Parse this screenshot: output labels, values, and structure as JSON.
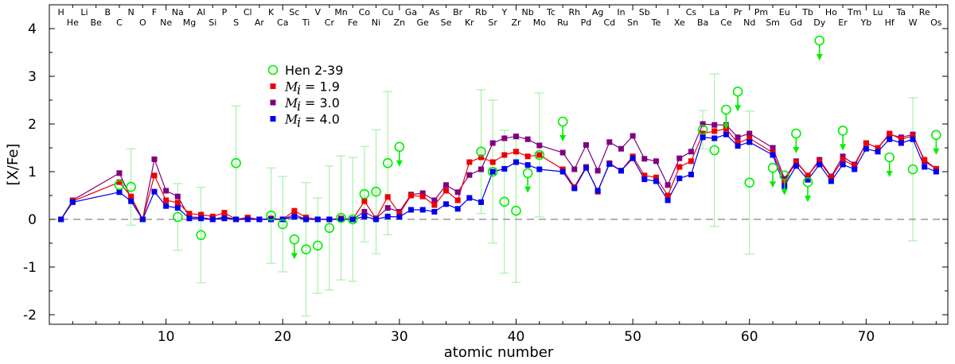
{
  "chart_data": {
    "type": "line",
    "title": "",
    "xlabel": "atomic number",
    "ylabel": "[X/Fe]",
    "xlim": [
      0,
      77
    ],
    "ylim": [
      -2.2,
      4.5
    ],
    "xticks": [
      10,
      20,
      30,
      40,
      50,
      60,
      70
    ],
    "yticks": [
      -2,
      -1,
      0,
      1,
      2,
      3,
      4
    ],
    "zero_line": "dashed",
    "legend_position": "upper-left",
    "colors": {
      "hen": "#00ee00",
      "hen_err": "#99ee99",
      "m19": "#ee0000",
      "m30": "#800080",
      "m40": "#0000ee",
      "zero": "#666666",
      "axis": "#000000"
    },
    "elements_top": [
      "H",
      "Li",
      "B",
      "N",
      "F",
      "Na",
      "Al",
      "P",
      "Cl",
      "K",
      "Sc",
      "V",
      "Mn",
      "Co",
      "Cu",
      "Ga",
      "As",
      "Br",
      "Rb",
      "Y",
      "Nb",
      "Tc",
      "Rh",
      "Ag",
      "In",
      "Sb",
      "I",
      "Cs",
      "La",
      "Pr",
      "Pm",
      "Eu",
      "Tb",
      "Ho",
      "Tm",
      "Lu",
      "Ta",
      "Re"
    ],
    "elements_bottom": [
      "He",
      "Be",
      "C",
      "O",
      "Ne",
      "Mg",
      "Si",
      "S",
      "Ar",
      "Ca",
      "Ti",
      "Cr",
      "Fe",
      "Ni",
      "Zn",
      "Ge",
      "Se",
      "Kr",
      "Sr",
      "Zr",
      "Mo",
      "Ru",
      "Pd",
      "Cd",
      "Sn",
      "Te",
      "Xe",
      "Ba",
      "Ce",
      "Nd",
      "Sm",
      "Gd",
      "Dy",
      "Er",
      "Yb",
      "Hf",
      "W",
      "Os"
    ],
    "legend": {
      "observed": "Hen 2-39",
      "models": [
        {
          "key": "m19",
          "label": "= 1.9"
        },
        {
          "key": "m30",
          "label": "= 3.0"
        },
        {
          "key": "m40",
          "label": "= 4.0"
        }
      ],
      "model_symbol": "M",
      "model_subscript": "i"
    },
    "observations": [
      {
        "z": 6,
        "y": 0.72,
        "err": null,
        "upper": false
      },
      {
        "z": 7,
        "y": 0.68,
        "err": 0.8,
        "upper": false
      },
      {
        "z": 11,
        "y": 0.05,
        "err": 0.7,
        "upper": false
      },
      {
        "z": 13,
        "y": -0.33,
        "err": 1.0,
        "upper": false
      },
      {
        "z": 16,
        "y": 1.18,
        "err": 1.2,
        "upper": false
      },
      {
        "z": 19,
        "y": 0.08,
        "err": 1.0,
        "upper": false
      },
      {
        "z": 20,
        "y": -0.1,
        "err": 1.0,
        "upper": false
      },
      {
        "z": 21,
        "y": -0.42,
        "err": null,
        "upper": true
      },
      {
        "z": 22,
        "y": -0.63,
        "err": 1.4,
        "upper": false
      },
      {
        "z": 23,
        "y": -0.55,
        "err": 1.0,
        "upper": false
      },
      {
        "z": 24,
        "y": -0.18,
        "err": 1.3,
        "upper": false
      },
      {
        "z": 25,
        "y": 0.03,
        "err": 1.3,
        "upper": false
      },
      {
        "z": 26,
        "y": 0.0,
        "err": 1.3,
        "upper": false
      },
      {
        "z": 27,
        "y": 0.53,
        "err": 1.0,
        "upper": false
      },
      {
        "z": 28,
        "y": 0.58,
        "err": 1.3,
        "upper": false
      },
      {
        "z": 29,
        "y": 1.18,
        "err": 1.5,
        "upper": false
      },
      {
        "z": 30,
        "y": 1.52,
        "err": null,
        "upper": true
      },
      {
        "z": 37,
        "y": 1.42,
        "err": 1.3,
        "upper": false
      },
      {
        "z": 38,
        "y": 1.0,
        "err": 1.5,
        "upper": false
      },
      {
        "z": 39,
        "y": 0.37,
        "err": 1.5,
        "upper": false
      },
      {
        "z": 40,
        "y": 0.18,
        "err": 1.5,
        "upper": false
      },
      {
        "z": 41,
        "y": 0.97,
        "err": null,
        "upper": true
      },
      {
        "z": 42,
        "y": 1.35,
        "err": 1.3,
        "upper": false
      },
      {
        "z": 44,
        "y": 2.05,
        "err": null,
        "upper": true
      },
      {
        "z": 56,
        "y": 1.88,
        "err": 0.4,
        "upper": false
      },
      {
        "z": 57,
        "y": 1.45,
        "err": 1.6,
        "upper": false
      },
      {
        "z": 58,
        "y": 2.3,
        "err": null,
        "upper": true
      },
      {
        "z": 59,
        "y": 2.68,
        "err": null,
        "upper": true
      },
      {
        "z": 60,
        "y": 0.77,
        "err": 1.5,
        "upper": false
      },
      {
        "z": 62,
        "y": 1.08,
        "err": null,
        "upper": true
      },
      {
        "z": 63,
        "y": 0.92,
        "err": null,
        "upper": true
      },
      {
        "z": 64,
        "y": 1.8,
        "err": null,
        "upper": true
      },
      {
        "z": 65,
        "y": 0.78,
        "err": null,
        "upper": true
      },
      {
        "z": 66,
        "y": 3.75,
        "err": null,
        "upper": true
      },
      {
        "z": 68,
        "y": 1.86,
        "err": null,
        "upper": true
      },
      {
        "z": 72,
        "y": 1.3,
        "err": null,
        "upper": true
      },
      {
        "z": 74,
        "y": 1.05,
        "err": 1.5,
        "upper": false
      },
      {
        "z": 76,
        "y": 1.77,
        "err": null,
        "upper": true
      }
    ],
    "series": [
      {
        "name": "Mi = 1.9",
        "key": "m19",
        "values": [
          [
            1,
            0.0
          ],
          [
            2,
            0.38
          ],
          [
            6,
            0.78
          ],
          [
            7,
            0.48
          ],
          [
            8,
            0.0
          ],
          [
            9,
            0.92
          ],
          [
            10,
            0.4
          ],
          [
            11,
            0.35
          ],
          [
            12,
            0.12
          ],
          [
            13,
            0.1
          ],
          [
            14,
            0.06
          ],
          [
            15,
            0.14
          ],
          [
            16,
            0.0
          ],
          [
            17,
            0.04
          ],
          [
            18,
            0.0
          ],
          [
            19,
            0.02
          ],
          [
            20,
            0.0
          ],
          [
            21,
            0.18
          ],
          [
            22,
            0.04
          ],
          [
            23,
            0.0
          ],
          [
            24,
            0.0
          ],
          [
            25,
            0.02
          ],
          [
            26,
            0.0
          ],
          [
            27,
            0.38
          ],
          [
            28,
            0.02
          ],
          [
            29,
            0.47
          ],
          [
            30,
            0.12
          ],
          [
            31,
            0.5
          ],
          [
            32,
            0.48
          ],
          [
            33,
            0.3
          ],
          [
            34,
            0.6
          ],
          [
            35,
            0.4
          ],
          [
            36,
            1.2
          ],
          [
            37,
            1.3
          ],
          [
            38,
            1.2
          ],
          [
            39,
            1.35
          ],
          [
            40,
            1.42
          ],
          [
            41,
            1.32
          ],
          [
            42,
            1.35
          ],
          [
            44,
            1.05
          ],
          [
            45,
            0.68
          ],
          [
            46,
            1.1
          ],
          [
            47,
            0.58
          ],
          [
            48,
            1.18
          ],
          [
            49,
            1.02
          ],
          [
            50,
            1.32
          ],
          [
            51,
            0.92
          ],
          [
            52,
            0.88
          ],
          [
            53,
            0.5
          ],
          [
            54,
            1.1
          ],
          [
            55,
            1.22
          ],
          [
            56,
            1.8
          ],
          [
            57,
            1.85
          ],
          [
            58,
            1.9
          ],
          [
            59,
            1.6
          ],
          [
            60,
            1.7
          ],
          [
            62,
            1.4
          ],
          [
            63,
            0.8
          ],
          [
            64,
            1.2
          ],
          [
            65,
            0.92
          ],
          [
            66,
            1.22
          ],
          [
            67,
            0.88
          ],
          [
            68,
            1.25
          ],
          [
            69,
            1.12
          ],
          [
            70,
            1.6
          ],
          [
            71,
            1.5
          ],
          [
            72,
            1.8
          ],
          [
            73,
            1.68
          ],
          [
            74,
            1.75
          ],
          [
            75,
            1.25
          ],
          [
            76,
            1.06
          ]
        ]
      },
      {
        "name": "Mi = 3.0",
        "key": "m30",
        "values": [
          [
            1,
            0.0
          ],
          [
            2,
            0.4
          ],
          [
            6,
            0.97
          ],
          [
            7,
            0.45
          ],
          [
            8,
            0.0
          ],
          [
            9,
            1.26
          ],
          [
            10,
            0.6
          ],
          [
            11,
            0.48
          ],
          [
            12,
            0.05
          ],
          [
            13,
            0.04
          ],
          [
            14,
            0.0
          ],
          [
            15,
            0.05
          ],
          [
            16,
            0.0
          ],
          [
            17,
            0.02
          ],
          [
            18,
            0.0
          ],
          [
            19,
            0.0
          ],
          [
            20,
            0.0
          ],
          [
            21,
            0.1
          ],
          [
            22,
            0.0
          ],
          [
            23,
            0.0
          ],
          [
            24,
            0.0
          ],
          [
            25,
            0.0
          ],
          [
            26,
            0.0
          ],
          [
            27,
            0.16
          ],
          [
            28,
            0.02
          ],
          [
            29,
            0.24
          ],
          [
            30,
            0.16
          ],
          [
            31,
            0.52
          ],
          [
            32,
            0.55
          ],
          [
            33,
            0.4
          ],
          [
            34,
            0.72
          ],
          [
            35,
            0.57
          ],
          [
            36,
            0.93
          ],
          [
            37,
            1.05
          ],
          [
            38,
            1.6
          ],
          [
            39,
            1.7
          ],
          [
            40,
            1.74
          ],
          [
            41,
            1.68
          ],
          [
            42,
            1.55
          ],
          [
            44,
            1.4
          ],
          [
            45,
            1.05
          ],
          [
            46,
            1.56
          ],
          [
            47,
            1.02
          ],
          [
            48,
            1.62
          ],
          [
            49,
            1.48
          ],
          [
            50,
            1.75
          ],
          [
            51,
            1.27
          ],
          [
            52,
            1.22
          ],
          [
            53,
            0.72
          ],
          [
            54,
            1.28
          ],
          [
            55,
            1.42
          ],
          [
            56,
            2.0
          ],
          [
            57,
            1.98
          ],
          [
            58,
            1.98
          ],
          [
            59,
            1.72
          ],
          [
            60,
            1.8
          ],
          [
            62,
            1.5
          ],
          [
            63,
            0.85
          ],
          [
            64,
            1.22
          ],
          [
            65,
            0.92
          ],
          [
            66,
            1.25
          ],
          [
            67,
            0.9
          ],
          [
            68,
            1.32
          ],
          [
            69,
            1.15
          ],
          [
            70,
            1.6
          ],
          [
            71,
            1.5
          ],
          [
            72,
            1.78
          ],
          [
            73,
            1.72
          ],
          [
            74,
            1.78
          ],
          [
            75,
            1.22
          ],
          [
            76,
            1.06
          ]
        ]
      },
      {
        "name": "Mi = 4.0",
        "key": "m40",
        "values": [
          [
            1,
            0.0
          ],
          [
            2,
            0.36
          ],
          [
            6,
            0.57
          ],
          [
            7,
            0.38
          ],
          [
            8,
            0.0
          ],
          [
            9,
            0.58
          ],
          [
            10,
            0.28
          ],
          [
            11,
            0.24
          ],
          [
            12,
            0.02
          ],
          [
            13,
            0.02
          ],
          [
            14,
            0.0
          ],
          [
            15,
            0.02
          ],
          [
            16,
            0.0
          ],
          [
            17,
            0.0
          ],
          [
            18,
            0.0
          ],
          [
            19,
            0.0
          ],
          [
            20,
            0.0
          ],
          [
            21,
            0.05
          ],
          [
            22,
            0.0
          ],
          [
            23,
            0.0
          ],
          [
            24,
            0.0
          ],
          [
            25,
            0.0
          ],
          [
            26,
            0.0
          ],
          [
            27,
            0.06
          ],
          [
            28,
            0.0
          ],
          [
            29,
            0.06
          ],
          [
            30,
            0.05
          ],
          [
            31,
            0.2
          ],
          [
            32,
            0.2
          ],
          [
            33,
            0.16
          ],
          [
            34,
            0.32
          ],
          [
            35,
            0.22
          ],
          [
            36,
            0.45
          ],
          [
            37,
            0.36
          ],
          [
            38,
            1.0
          ],
          [
            39,
            1.06
          ],
          [
            40,
            1.2
          ],
          [
            41,
            1.14
          ],
          [
            42,
            1.05
          ],
          [
            44,
            1.0
          ],
          [
            45,
            0.65
          ],
          [
            46,
            1.08
          ],
          [
            47,
            0.6
          ],
          [
            48,
            1.16
          ],
          [
            49,
            1.02
          ],
          [
            50,
            1.28
          ],
          [
            51,
            0.84
          ],
          [
            52,
            0.8
          ],
          [
            53,
            0.4
          ],
          [
            54,
            0.86
          ],
          [
            55,
            0.94
          ],
          [
            56,
            1.72
          ],
          [
            57,
            1.7
          ],
          [
            58,
            1.78
          ],
          [
            59,
            1.54
          ],
          [
            60,
            1.62
          ],
          [
            62,
            1.35
          ],
          [
            63,
            0.7
          ],
          [
            64,
            1.12
          ],
          [
            65,
            0.83
          ],
          [
            66,
            1.15
          ],
          [
            67,
            0.8
          ],
          [
            68,
            1.15
          ],
          [
            69,
            1.05
          ],
          [
            70,
            1.48
          ],
          [
            71,
            1.42
          ],
          [
            72,
            1.68
          ],
          [
            73,
            1.6
          ],
          [
            74,
            1.68
          ],
          [
            75,
            1.1
          ],
          [
            76,
            1.0
          ]
        ]
      }
    ]
  }
}
